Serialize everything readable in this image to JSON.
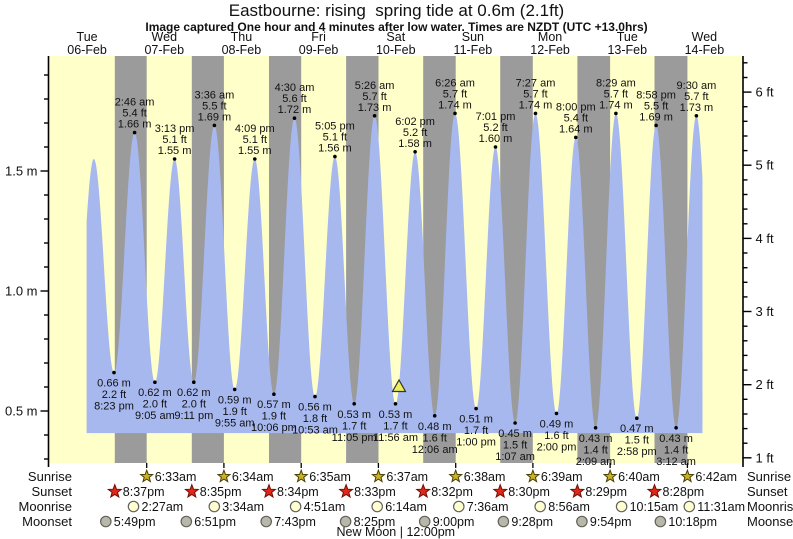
{
  "title": "Eastbourne: rising  spring tide at 0.6m (2.1ft)",
  "subtitle": "Image captured One hour and 4 minutes after low water. Times are NZDT (UTC +13.0hrs)",
  "colors": {
    "day_band": "#ffffc9",
    "night_band": "#9b9b9b",
    "tide_fill": "#a7b8ef",
    "marker_fill": "#efef5a",
    "date_red": "#ee1c1c",
    "sunrise_star": "#c9b227",
    "sunset_star": "#e02818",
    "moonrise_circle": "#ffffd2",
    "moonset_circle": "#b8b8aa"
  },
  "chart_data": {
    "type": "area",
    "title": "Eastbourne: rising  spring tide at 0.6m (2.1ft)",
    "days": [
      {
        "weekday": "Tue",
        "date": "06-Feb"
      },
      {
        "weekday": "Wed",
        "date": "07-Feb"
      },
      {
        "weekday": "Thu",
        "date": "08-Feb"
      },
      {
        "weekday": "Fri",
        "date": "09-Feb"
      },
      {
        "weekday": "Sat",
        "date": "10-Feb"
      },
      {
        "weekday": "Sun",
        "date": "11-Feb"
      },
      {
        "weekday": "Mon",
        "date": "12-Feb"
      },
      {
        "weekday": "Tue",
        "date": "13-Feb"
      },
      {
        "weekday": "Wed",
        "date": "14-Feb"
      }
    ],
    "left_axis": {
      "unit": "m",
      "major_ticks": [
        0.5,
        1.0,
        1.5
      ],
      "minor_step": 0.1,
      "range_m": [
        0.28,
        1.96
      ]
    },
    "right_axis": {
      "unit": "ft",
      "major_ticks": [
        1,
        2,
        3,
        4,
        5,
        6
      ],
      "minor_step": 0.2
    },
    "fill_base_m": 0.408,
    "data_window_hours": [
      11.85,
      203.4
    ],
    "tides": [
      {
        "type": "low",
        "virtual": true,
        "hours": 7.9,
        "m": "0.66 m",
        "labeled": false
      },
      {
        "type": "high",
        "day": 0,
        "hours": 14.1,
        "m": "1.55 m",
        "labeled": false
      },
      {
        "type": "low",
        "day": 0,
        "time": "8:23 pm",
        "m": "0.66 m",
        "ft": "2.2 ft",
        "labeled": true
      },
      {
        "type": "high",
        "day": 1,
        "time": "2:46 am",
        "m": "1.66 m",
        "ft": "5.4 ft",
        "labeled": true
      },
      {
        "type": "low",
        "day": 1,
        "time": "9:05 am",
        "m": "0.62 m",
        "ft": "2.0 ft",
        "labeled": true
      },
      {
        "type": "high",
        "day": 1,
        "time": "3:13 pm",
        "m": "1.55 m",
        "ft": "5.1 ft",
        "labeled": true
      },
      {
        "type": "low",
        "day": 1,
        "time": "9:11 pm",
        "m": "0.62 m",
        "ft": "2.0 ft",
        "labeled": true
      },
      {
        "type": "high",
        "day": 2,
        "time": "3:36 am",
        "m": "1.69 m",
        "ft": "5.5 ft",
        "labeled": true
      },
      {
        "type": "low",
        "day": 2,
        "time": "9:55 am",
        "m": "0.59 m",
        "ft": "1.9 ft",
        "labeled": true
      },
      {
        "type": "high",
        "day": 2,
        "time": "4:09 pm",
        "m": "1.55 m",
        "ft": "5.1 ft",
        "labeled": true
      },
      {
        "type": "low",
        "day": 2,
        "time": "10:06 pm",
        "m": "0.57 m",
        "ft": "1.9 ft",
        "labeled": true
      },
      {
        "type": "high",
        "day": 3,
        "time": "4:30 am",
        "m": "1.72 m",
        "ft": "5.6 ft",
        "labeled": true
      },
      {
        "type": "low",
        "day": 3,
        "time": "10:53 am",
        "m": "0.56 m",
        "ft": "1.8 ft",
        "labeled": true
      },
      {
        "type": "high",
        "day": 3,
        "time": "5:05 pm",
        "m": "1.56 m",
        "ft": "5.1 ft",
        "labeled": true
      },
      {
        "type": "low",
        "day": 3,
        "time": "11:05 pm",
        "m": "0.53 m",
        "ft": "1.7 ft",
        "labeled": true
      },
      {
        "type": "high",
        "day": 4,
        "time": "5:26 am",
        "m": "1.73 m",
        "ft": "5.7 ft",
        "labeled": true
      },
      {
        "type": "low",
        "day": 4,
        "time": "11:56 am",
        "m": "0.53 m",
        "ft": "1.7 ft",
        "labeled": true
      },
      {
        "type": "high",
        "day": 4,
        "time": "6:02 pm",
        "m": "1.58 m",
        "ft": "5.2 ft",
        "labeled": true
      },
      {
        "type": "low",
        "day": 5,
        "time": "12:06 am",
        "m": "0.48 m",
        "ft": "1.6 ft",
        "labeled": true
      },
      {
        "type": "high",
        "day": 5,
        "time": "6:26 am",
        "m": "1.74 m",
        "ft": "5.7 ft",
        "labeled": true
      },
      {
        "type": "low",
        "day": 5,
        "time": "1:00 pm",
        "m": "0.51 m",
        "ft": "1.7 ft",
        "labeled": true
      },
      {
        "type": "high",
        "day": 5,
        "time": "7:01 pm",
        "m": "1.60 m",
        "ft": "5.2 ft",
        "labeled": true
      },
      {
        "type": "low",
        "day": 6,
        "time": "1:07 am",
        "m": "0.45 m",
        "ft": "1.5 ft",
        "labeled": true
      },
      {
        "type": "high",
        "day": 6,
        "time": "7:27 am",
        "m": "1.74 m",
        "ft": "5.7 ft",
        "labeled": true
      },
      {
        "type": "low",
        "day": 6,
        "time": "2:00 pm",
        "m": "0.49 m",
        "ft": "1.6 ft",
        "labeled": true
      },
      {
        "type": "high",
        "day": 6,
        "time": "8:00 pm",
        "m": "1.64 m",
        "ft": "5.4 ft",
        "labeled": true
      },
      {
        "type": "low",
        "day": 7,
        "time": "2:09 am",
        "m": "0.43 m",
        "ft": "1.4 ft",
        "labeled": true
      },
      {
        "type": "high",
        "day": 7,
        "time": "8:29 am",
        "m": "1.74 m",
        "ft": "5.7 ft",
        "labeled": true
      },
      {
        "type": "low",
        "day": 7,
        "time": "2:58 pm",
        "m": "0.47 m",
        "ft": "1.5 ft",
        "labeled": true
      },
      {
        "type": "high",
        "day": 7,
        "time": "8:58 pm",
        "m": "1.69 m",
        "ft": "5.5 ft",
        "labeled": true
      },
      {
        "type": "low",
        "day": 8,
        "time": "3:12 am",
        "m": "0.43 m",
        "ft": "1.4 ft",
        "labeled": true
      },
      {
        "type": "high",
        "day": 8,
        "time": "9:30 am",
        "m": "1.73 m",
        "ft": "5.7 ft",
        "labeled": true
      },
      {
        "type": "low",
        "virtual": true,
        "hours": 207.8,
        "m": "0.47 m",
        "labeled": false
      }
    ],
    "current_marker": {
      "day": 4,
      "time": "1:00 pm",
      "m": 0.6
    },
    "sun_moon": {
      "rows": [
        {
          "label": "Sunrise",
          "icon": "sunrise-star-icon",
          "entries": [
            {
              "day": 1,
              "time": "6:33am"
            },
            {
              "day": 2,
              "time": "6:34am"
            },
            {
              "day": 3,
              "time": "6:35am"
            },
            {
              "day": 4,
              "time": "6:37am"
            },
            {
              "day": 5,
              "time": "6:38am"
            },
            {
              "day": 6,
              "time": "6:39am"
            },
            {
              "day": 7,
              "time": "6:40am"
            },
            {
              "day": 8,
              "time": "6:42am"
            }
          ]
        },
        {
          "label": "Sunset",
          "icon": "sunset-star-icon",
          "entries": [
            {
              "day": 0,
              "time": "8:37pm"
            },
            {
              "day": 1,
              "time": "8:35pm"
            },
            {
              "day": 2,
              "time": "8:34pm"
            },
            {
              "day": 3,
              "time": "8:33pm"
            },
            {
              "day": 4,
              "time": "8:32pm"
            },
            {
              "day": 5,
              "time": "8:30pm"
            },
            {
              "day": 6,
              "time": "8:29pm"
            },
            {
              "day": 7,
              "time": "8:28pm"
            }
          ]
        },
        {
          "label": "Moonrise",
          "icon": "moonrise-circle-icon",
          "entries": [
            {
              "day": 1,
              "time": "2:27am"
            },
            {
              "day": 2,
              "time": "3:34am"
            },
            {
              "day": 3,
              "time": "4:51am"
            },
            {
              "day": 4,
              "time": "6:14am"
            },
            {
              "day": 5,
              "time": "7:36am"
            },
            {
              "day": 6,
              "time": "8:56am"
            },
            {
              "day": 7,
              "time": "10:15am"
            },
            {
              "day": 8,
              "time": "11:31am"
            }
          ]
        },
        {
          "label": "Moonset",
          "icon": "moonset-circle-icon",
          "entries": [
            {
              "day": 0,
              "time": "5:49pm"
            },
            {
              "day": 1,
              "time": "6:51pm"
            },
            {
              "day": 2,
              "time": "7:43pm"
            },
            {
              "day": 3,
              "time": "8:25pm"
            },
            {
              "day": 4,
              "time": "9:00pm"
            },
            {
              "day": 5,
              "time": "9:28pm"
            },
            {
              "day": 6,
              "time": "9:54pm"
            },
            {
              "day": 7,
              "time": "10:18pm"
            }
          ]
        }
      ],
      "footer": "New Moon | 12:00pm"
    }
  }
}
